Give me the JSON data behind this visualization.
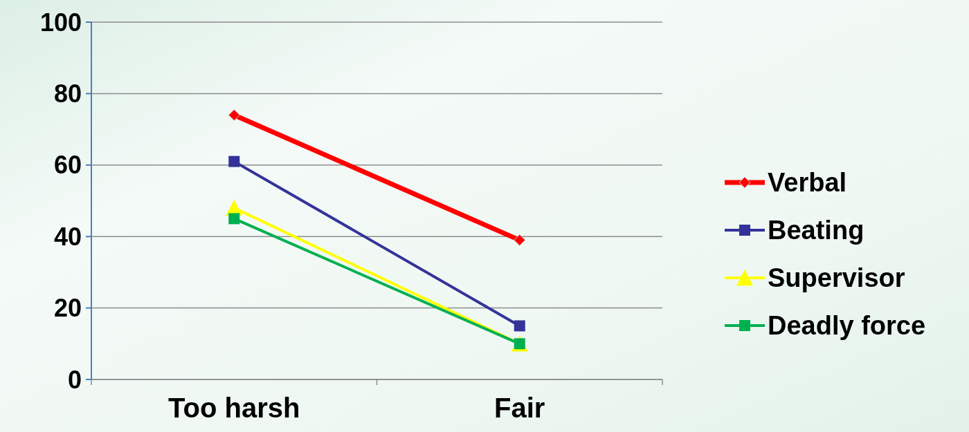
{
  "chart_data": {
    "type": "line",
    "categories": [
      "Too harsh",
      "Fair"
    ],
    "series": [
      {
        "name": "Verbal",
        "color": "#ff0000",
        "values": [
          74,
          39
        ],
        "marker": "diamond"
      },
      {
        "name": "Beating",
        "color": "#333399",
        "values": [
          61,
          15
        ],
        "marker": "square"
      },
      {
        "name": "Supervisor",
        "color": "#ffff00",
        "values": [
          48,
          10
        ],
        "marker": "triangle"
      },
      {
        "name": "Deadly force",
        "color": "#00b050",
        "values": [
          45,
          10
        ],
        "marker": "square"
      }
    ],
    "ylim": [
      0,
      100
    ],
    "yticks": [
      0,
      20,
      40,
      60,
      80,
      100
    ],
    "grid": "y",
    "legend": "right"
  }
}
